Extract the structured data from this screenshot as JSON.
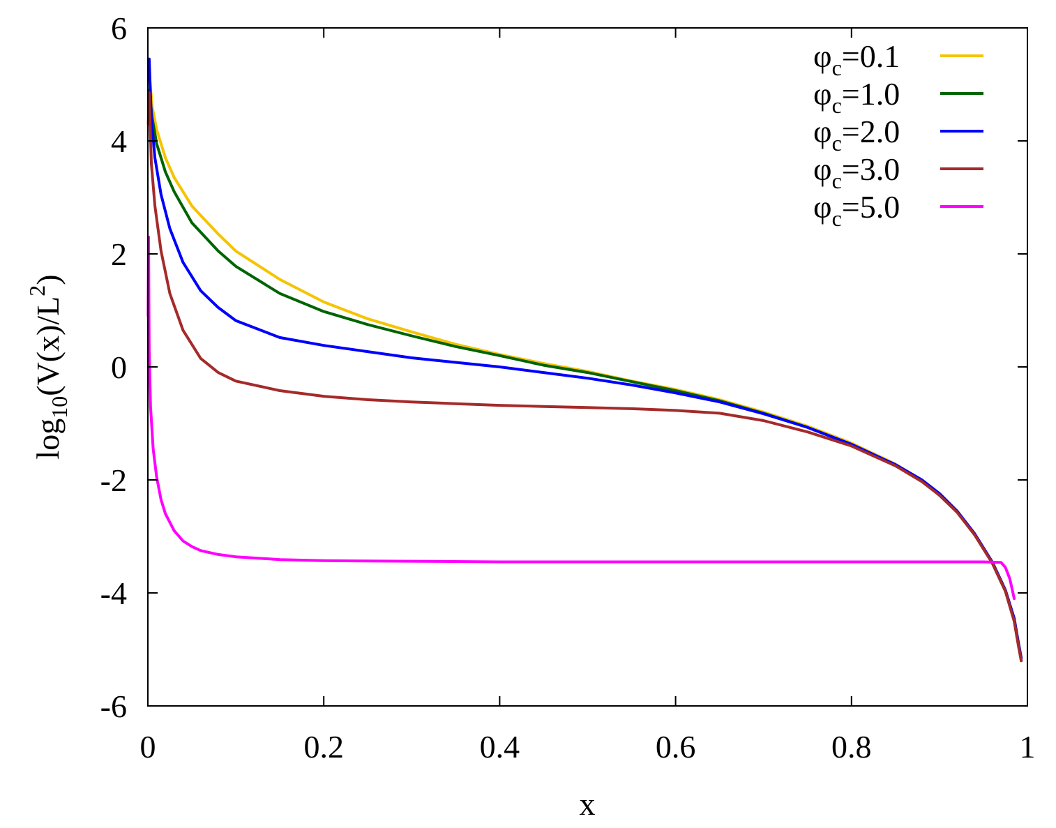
{
  "chart_data": {
    "type": "line",
    "xlabel": "x",
    "ylabel": {
      "prefix": "log",
      "sub": "10",
      "main": "(V(x)/L",
      "sup": "2",
      "suffix": ")"
    },
    "xlim": [
      0,
      1
    ],
    "ylim": [
      -6,
      6
    ],
    "x_ticks": [
      0,
      0.2,
      0.4,
      0.6,
      0.8,
      1
    ],
    "x_tick_labels": [
      "0",
      "0.2",
      "0.4",
      "0.6",
      "0.8",
      "1"
    ],
    "y_ticks": [
      -6,
      -4,
      -2,
      0,
      2,
      4,
      6
    ],
    "y_tick_labels": [
      "-6",
      "-4",
      "-2",
      "0",
      "2",
      "4",
      "6"
    ],
    "grid": false,
    "legend_position": "top-right",
    "series": [
      {
        "name": "φc=0.1",
        "label": {
          "symbol": "φ",
          "sub": "c",
          "value": "=0.1"
        },
        "color": "#f5c400",
        "points": [
          [
            0.0015,
            5.2
          ],
          [
            0.005,
            4.6
          ],
          [
            0.01,
            4.2
          ],
          [
            0.02,
            3.7
          ],
          [
            0.03,
            3.35
          ],
          [
            0.05,
            2.85
          ],
          [
            0.08,
            2.35
          ],
          [
            0.1,
            2.05
          ],
          [
            0.15,
            1.55
          ],
          [
            0.2,
            1.15
          ],
          [
            0.25,
            0.85
          ],
          [
            0.3,
            0.62
          ],
          [
            0.35,
            0.4
          ],
          [
            0.4,
            0.22
          ],
          [
            0.45,
            0.06
          ],
          [
            0.5,
            -0.08
          ],
          [
            0.55,
            -0.25
          ],
          [
            0.6,
            -0.4
          ],
          [
            0.65,
            -0.58
          ],
          [
            0.7,
            -0.8
          ],
          [
            0.75,
            -1.05
          ],
          [
            0.8,
            -1.35
          ],
          [
            0.85,
            -1.72
          ],
          [
            0.88,
            -2.0
          ],
          [
            0.9,
            -2.25
          ],
          [
            0.92,
            -2.55
          ],
          [
            0.94,
            -2.95
          ],
          [
            0.96,
            -3.45
          ],
          [
            0.975,
            -3.95
          ],
          [
            0.985,
            -4.45
          ],
          [
            0.99,
            -4.9
          ],
          [
            0.993,
            -5.15
          ]
        ]
      },
      {
        "name": "φc=1.0",
        "label": {
          "symbol": "φ",
          "sub": "c",
          "value": "=1.0"
        },
        "color": "#006400",
        "points": [
          [
            0.0015,
            4.9
          ],
          [
            0.005,
            4.4
          ],
          [
            0.01,
            3.95
          ],
          [
            0.02,
            3.45
          ],
          [
            0.03,
            3.1
          ],
          [
            0.05,
            2.55
          ],
          [
            0.08,
            2.05
          ],
          [
            0.1,
            1.78
          ],
          [
            0.15,
            1.3
          ],
          [
            0.2,
            0.98
          ],
          [
            0.25,
            0.75
          ],
          [
            0.3,
            0.55
          ],
          [
            0.35,
            0.36
          ],
          [
            0.4,
            0.2
          ],
          [
            0.45,
            0.03
          ],
          [
            0.5,
            -0.1
          ],
          [
            0.55,
            -0.26
          ],
          [
            0.6,
            -0.42
          ],
          [
            0.65,
            -0.6
          ],
          [
            0.7,
            -0.82
          ],
          [
            0.75,
            -1.07
          ],
          [
            0.8,
            -1.37
          ],
          [
            0.85,
            -1.74
          ],
          [
            0.88,
            -2.02
          ],
          [
            0.9,
            -2.27
          ],
          [
            0.92,
            -2.57
          ],
          [
            0.94,
            -2.97
          ],
          [
            0.96,
            -3.47
          ],
          [
            0.975,
            -3.97
          ],
          [
            0.985,
            -4.5
          ],
          [
            0.99,
            -4.95
          ],
          [
            0.993,
            -5.2
          ]
        ]
      },
      {
        "name": "φc=2.0",
        "label": {
          "symbol": "φ",
          "sub": "c",
          "value": "=2.0"
        },
        "color": "#0000ff",
        "points": [
          [
            0.0015,
            5.45
          ],
          [
            0.004,
            4.4
          ],
          [
            0.008,
            3.7
          ],
          [
            0.015,
            3.05
          ],
          [
            0.025,
            2.45
          ],
          [
            0.04,
            1.85
          ],
          [
            0.06,
            1.35
          ],
          [
            0.08,
            1.05
          ],
          [
            0.1,
            0.82
          ],
          [
            0.15,
            0.52
          ],
          [
            0.2,
            0.38
          ],
          [
            0.25,
            0.27
          ],
          [
            0.3,
            0.16
          ],
          [
            0.35,
            0.08
          ],
          [
            0.4,
            0.0
          ],
          [
            0.45,
            -0.1
          ],
          [
            0.5,
            -0.2
          ],
          [
            0.55,
            -0.32
          ],
          [
            0.6,
            -0.46
          ],
          [
            0.65,
            -0.62
          ],
          [
            0.7,
            -0.83
          ],
          [
            0.75,
            -1.07
          ],
          [
            0.8,
            -1.37
          ],
          [
            0.85,
            -1.73
          ],
          [
            0.88,
            -2.0
          ],
          [
            0.9,
            -2.24
          ],
          [
            0.92,
            -2.55
          ],
          [
            0.94,
            -2.95
          ],
          [
            0.96,
            -3.45
          ],
          [
            0.975,
            -3.95
          ],
          [
            0.985,
            -4.45
          ],
          [
            0.99,
            -4.9
          ],
          [
            0.993,
            -5.15
          ]
        ]
      },
      {
        "name": "φc=3.0",
        "label": {
          "symbol": "φ",
          "sub": "c",
          "value": "=3.0"
        },
        "color": "#a52a2a",
        "points": [
          [
            0.0005,
            4.3
          ],
          [
            0.0015,
            4.85
          ],
          [
            0.004,
            3.6
          ],
          [
            0.008,
            2.85
          ],
          [
            0.015,
            2.05
          ],
          [
            0.025,
            1.3
          ],
          [
            0.04,
            0.65
          ],
          [
            0.06,
            0.15
          ],
          [
            0.08,
            -0.1
          ],
          [
            0.1,
            -0.25
          ],
          [
            0.15,
            -0.42
          ],
          [
            0.2,
            -0.52
          ],
          [
            0.25,
            -0.58
          ],
          [
            0.3,
            -0.62
          ],
          [
            0.35,
            -0.65
          ],
          [
            0.4,
            -0.68
          ],
          [
            0.45,
            -0.7
          ],
          [
            0.5,
            -0.72
          ],
          [
            0.55,
            -0.74
          ],
          [
            0.6,
            -0.77
          ],
          [
            0.65,
            -0.82
          ],
          [
            0.7,
            -0.95
          ],
          [
            0.75,
            -1.15
          ],
          [
            0.8,
            -1.4
          ],
          [
            0.85,
            -1.75
          ],
          [
            0.88,
            -2.03
          ],
          [
            0.9,
            -2.27
          ],
          [
            0.92,
            -2.57
          ],
          [
            0.94,
            -2.97
          ],
          [
            0.96,
            -3.47
          ],
          [
            0.975,
            -3.97
          ],
          [
            0.985,
            -4.5
          ],
          [
            0.99,
            -4.95
          ],
          [
            0.993,
            -5.2
          ]
        ]
      },
      {
        "name": "φc=5.0",
        "label": {
          "symbol": "φ",
          "sub": "c",
          "value": "=5.0"
        },
        "color": "#ff00ff",
        "points": [
          [
            0.0003,
            0.9
          ],
          [
            0.0008,
            2.3
          ],
          [
            0.0015,
            0.3
          ],
          [
            0.003,
            -0.7
          ],
          [
            0.006,
            -1.45
          ],
          [
            0.01,
            -1.95
          ],
          [
            0.015,
            -2.35
          ],
          [
            0.02,
            -2.6
          ],
          [
            0.03,
            -2.9
          ],
          [
            0.04,
            -3.08
          ],
          [
            0.05,
            -3.18
          ],
          [
            0.06,
            -3.25
          ],
          [
            0.08,
            -3.32
          ],
          [
            0.1,
            -3.36
          ],
          [
            0.15,
            -3.41
          ],
          [
            0.2,
            -3.43
          ],
          [
            0.3,
            -3.44
          ],
          [
            0.4,
            -3.45
          ],
          [
            0.5,
            -3.45
          ],
          [
            0.6,
            -3.45
          ],
          [
            0.7,
            -3.45
          ],
          [
            0.8,
            -3.45
          ],
          [
            0.9,
            -3.45
          ],
          [
            0.95,
            -3.45
          ],
          [
            0.97,
            -3.46
          ],
          [
            0.975,
            -3.55
          ],
          [
            0.98,
            -3.75
          ],
          [
            0.985,
            -4.1
          ]
        ]
      }
    ]
  }
}
